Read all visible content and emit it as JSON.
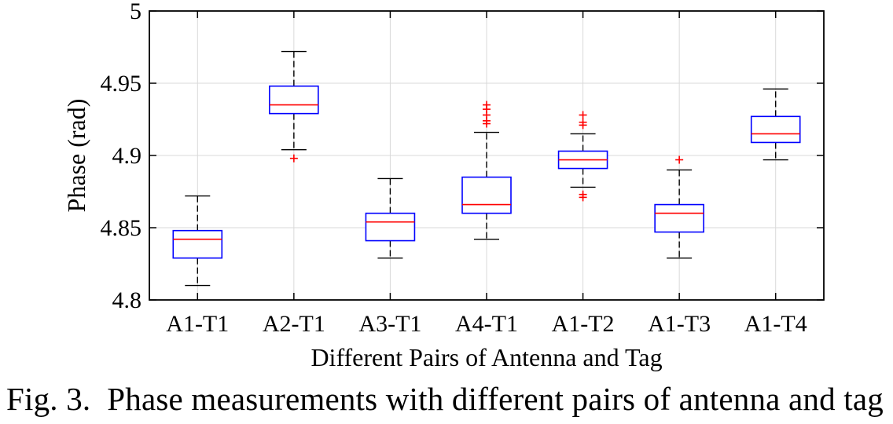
{
  "chart_data": {
    "type": "boxplot",
    "title": "",
    "xlabel": "Different Pairs of Antenna and Tag",
    "ylabel": "Phase (rad)",
    "ylim": [
      4.8,
      5.0
    ],
    "yticks": [
      "4.8",
      "4.85",
      "4.9",
      "4.95",
      "5"
    ],
    "grid": true,
    "colors": {
      "box": "#0000ff",
      "median": "#ff0000",
      "whisker": "#000000",
      "outlier": "#ff0000",
      "grid": "#d9d9d9"
    },
    "categories": [
      "A1-T1",
      "A2-T1",
      "A3-T1",
      "A4-T1",
      "A1-T2",
      "A1-T3",
      "A1-T4"
    ],
    "boxes": [
      {
        "label": "A1-T1",
        "whisker_low": 4.81,
        "q1": 4.829,
        "median": 4.842,
        "q3": 4.848,
        "whisker_high": 4.872,
        "outliers": []
      },
      {
        "label": "A2-T1",
        "whisker_low": 4.904,
        "q1": 4.929,
        "median": 4.935,
        "q3": 4.948,
        "whisker_high": 4.972,
        "outliers": [
          4.898
        ]
      },
      {
        "label": "A3-T1",
        "whisker_low": 4.829,
        "q1": 4.841,
        "median": 4.854,
        "q3": 4.86,
        "whisker_high": 4.884,
        "outliers": []
      },
      {
        "label": "A4-T1",
        "whisker_low": 4.842,
        "q1": 4.86,
        "median": 4.866,
        "q3": 4.885,
        "whisker_high": 4.916,
        "outliers": [
          4.922,
          4.924,
          4.928,
          4.932,
          4.935
        ]
      },
      {
        "label": "A1-T2",
        "whisker_low": 4.878,
        "q1": 4.891,
        "median": 4.897,
        "q3": 4.903,
        "whisker_high": 4.915,
        "outliers": [
          4.871,
          4.873,
          4.921,
          4.923,
          4.928
        ]
      },
      {
        "label": "A1-T3",
        "whisker_low": 4.829,
        "q1": 4.847,
        "median": 4.86,
        "q3": 4.866,
        "whisker_high": 4.89,
        "outliers": [
          4.897
        ]
      },
      {
        "label": "A1-T4",
        "whisker_low": 4.897,
        "q1": 4.909,
        "median": 4.915,
        "q3": 4.927,
        "whisker_high": 4.946,
        "outliers": []
      }
    ]
  },
  "caption": {
    "prefix": "Fig. 3.",
    "text": "Phase measurements with different pairs of antenna and tag"
  }
}
